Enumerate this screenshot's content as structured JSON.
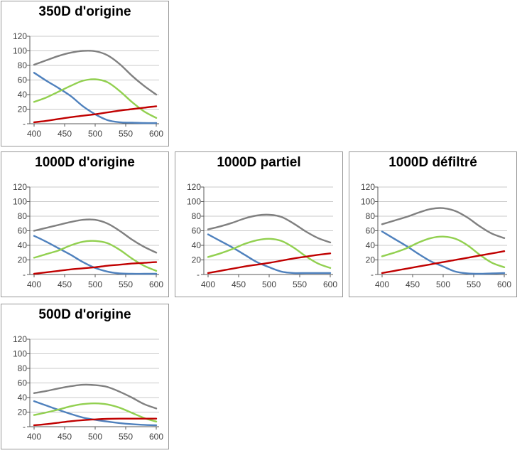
{
  "palette": {
    "blue": "#4F81BD",
    "green": "#92D050",
    "red": "#C00000",
    "gray": "#808080",
    "gridline": "#C9C9C9",
    "axis": "#595959",
    "tick_label": "#3F3F3F",
    "title": "#000000"
  },
  "axis": {
    "x_ticks": [
      400,
      450,
      500,
      550,
      600
    ],
    "x_tick_labels": [
      "400",
      "450",
      "500",
      "550",
      "600"
    ],
    "y_ticks": [
      0,
      20,
      40,
      60,
      80,
      100,
      120
    ],
    "y_tick_labels": [
      "-",
      "20",
      "40",
      "60",
      "80",
      "100",
      "120"
    ],
    "xlim": [
      400,
      600
    ],
    "ylim": [
      0,
      120
    ],
    "grid": true,
    "legend": "none"
  },
  "chart_data": [
    {
      "type": "line",
      "title": "350D d'origine",
      "x": [
        400,
        420,
        440,
        460,
        480,
        500,
        520,
        540,
        560,
        580,
        600
      ],
      "series": [
        {
          "name": "blue",
          "values": [
            70,
            59,
            49,
            38,
            24,
            13,
            5,
            2,
            1.5,
            1,
            1
          ]
        },
        {
          "name": "green",
          "values": [
            30,
            36,
            44,
            52,
            59,
            61,
            57,
            45,
            30,
            17,
            8
          ]
        },
        {
          "name": "red",
          "values": [
            2,
            4,
            6.5,
            9,
            11,
            13,
            15.5,
            18,
            20,
            22,
            24
          ]
        },
        {
          "name": "gray",
          "values": [
            81,
            87,
            93,
            97.5,
            100,
            99.5,
            94,
            82,
            66,
            52,
            40
          ]
        }
      ]
    },
    {
      "type": "line",
      "title": "1000D d'origine",
      "x": [
        400,
        420,
        440,
        460,
        480,
        500,
        520,
        540,
        560,
        580,
        600
      ],
      "series": [
        {
          "name": "blue",
          "values": [
            53,
            45,
            36,
            27,
            17,
            9,
            4,
            1.5,
            1,
            1,
            1
          ]
        },
        {
          "name": "green",
          "values": [
            23,
            28,
            33,
            40,
            45,
            46,
            43,
            34,
            22,
            12,
            5
          ]
        },
        {
          "name": "red",
          "values": [
            1,
            3,
            5,
            7,
            8.5,
            10,
            12,
            13.5,
            15,
            16,
            17
          ]
        },
        {
          "name": "gray",
          "values": [
            60,
            64,
            68,
            72,
            75,
            75,
            70,
            60,
            48,
            38,
            30
          ]
        }
      ]
    },
    {
      "type": "line",
      "title": "1000D partiel",
      "x": [
        400,
        420,
        440,
        460,
        480,
        500,
        520,
        540,
        560,
        580,
        600
      ],
      "series": [
        {
          "name": "blue",
          "values": [
            55,
            46,
            37,
            27,
            17,
            10,
            4,
            2,
            2,
            2,
            2
          ]
        },
        {
          "name": "green",
          "values": [
            24,
            29,
            35,
            42,
            47,
            49,
            46,
            37,
            25,
            15,
            9
          ]
        },
        {
          "name": "red",
          "values": [
            2,
            5,
            8,
            11,
            13.5,
            16,
            19,
            22,
            24.5,
            27,
            29
          ]
        },
        {
          "name": "gray",
          "values": [
            62,
            66,
            71,
            77,
            81,
            82,
            79,
            70,
            59,
            50,
            44
          ]
        }
      ]
    },
    {
      "type": "line",
      "title": "1000D défiltré",
      "x": [
        400,
        420,
        440,
        460,
        480,
        500,
        520,
        540,
        560,
        580,
        600
      ],
      "series": [
        {
          "name": "blue",
          "values": [
            59,
            49,
            39,
            28,
            18,
            11,
            4,
            1.5,
            1,
            1.5,
            2
          ]
        },
        {
          "name": "green",
          "values": [
            25,
            30,
            36,
            44,
            50,
            52,
            49,
            40,
            27,
            16,
            10
          ]
        },
        {
          "name": "red",
          "values": [
            2,
            5,
            8,
            11,
            14,
            17,
            20,
            23,
            26,
            29,
            32
          ]
        },
        {
          "name": "gray",
          "values": [
            69,
            74,
            79,
            85,
            90,
            91,
            87,
            78,
            66,
            56,
            50
          ]
        }
      ]
    },
    {
      "type": "line",
      "title": "500D d'origine",
      "x": [
        400,
        420,
        440,
        460,
        480,
        500,
        520,
        540,
        560,
        580,
        600
      ],
      "series": [
        {
          "name": "blue",
          "values": [
            35,
            29,
            23,
            17.5,
            12.5,
            9.5,
            7,
            5,
            3.5,
            2.5,
            2
          ]
        },
        {
          "name": "green",
          "values": [
            16,
            19.5,
            23.5,
            28,
            31,
            32,
            30.5,
            26,
            19,
            12,
            7
          ]
        },
        {
          "name": "red",
          "values": [
            2,
            3.5,
            5.5,
            7.5,
            9,
            10,
            10.7,
            11,
            11,
            11,
            11
          ]
        },
        {
          "name": "gray",
          "values": [
            46,
            49,
            52.5,
            55.5,
            57.5,
            57,
            54.5,
            48,
            40,
            31,
            25
          ]
        }
      ]
    }
  ]
}
